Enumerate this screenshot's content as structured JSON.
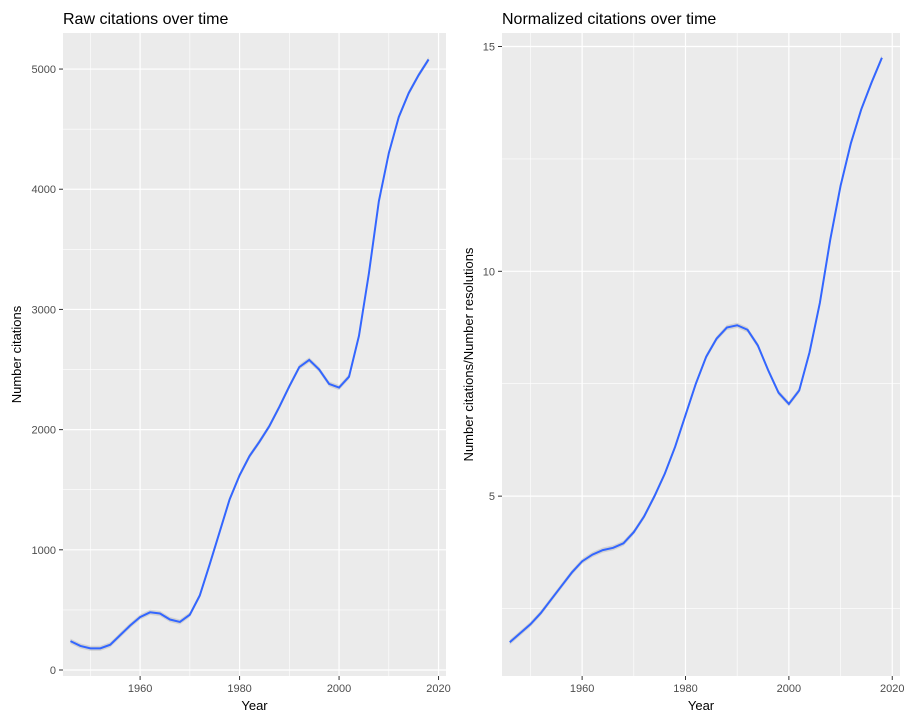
{
  "chart_data": [
    {
      "type": "line",
      "title": "Raw citations over time",
      "xlabel": "Year",
      "ylabel": "Number citations",
      "xlim": [
        1944.5,
        2021.5
      ],
      "ylim": [
        -50,
        5300
      ],
      "x_ticks": [
        1960,
        1980,
        2000,
        2020
      ],
      "x_tick_labels": [
        "1960",
        "1980",
        "2000",
        "2020"
      ],
      "y_ticks": [
        0,
        1000,
        2000,
        3000,
        4000,
        5000
      ],
      "y_tick_labels": [
        "0",
        "1000",
        "2000",
        "3000",
        "4000",
        "5000"
      ],
      "grid": true,
      "panel_background": "#ebebeb",
      "line_color": "#3366ff",
      "series": [
        {
          "x": [
            1946,
            1948,
            1950,
            1952,
            1954,
            1956,
            1958,
            1960,
            1962,
            1964,
            1966,
            1968,
            1970,
            1972,
            1974,
            1976,
            1978,
            1980,
            1982,
            1984,
            1986,
            1988,
            1990,
            1992,
            1994,
            1996,
            1998,
            2000,
            2002,
            2004,
            2006,
            2008,
            2010,
            2012,
            2014,
            2016,
            2018
          ],
          "y": [
            240,
            200,
            180,
            180,
            210,
            290,
            370,
            440,
            480,
            470,
            420,
            400,
            460,
            620,
            880,
            1150,
            1420,
            1620,
            1780,
            1900,
            2030,
            2190,
            2360,
            2520,
            2580,
            2500,
            2380,
            2350,
            2440,
            2780,
            3300,
            3900,
            4300,
            4600,
            4800,
            4950,
            5080
          ]
        }
      ]
    },
    {
      "type": "line",
      "title": "Normalized citations over time",
      "xlabel": "Year",
      "ylabel": "Number citations/Number resolutions",
      "xlim": [
        1944.5,
        2021.5
      ],
      "ylim": [
        1.0,
        15.3
      ],
      "x_ticks": [
        1960,
        1980,
        2000,
        2020
      ],
      "x_tick_labels": [
        "1960",
        "1980",
        "2000",
        "2020"
      ],
      "y_ticks": [
        5,
        10,
        15
      ],
      "y_tick_labels": [
        "5",
        "10",
        "15"
      ],
      "grid": true,
      "panel_background": "#ebebeb",
      "line_color": "#3366ff",
      "series": [
        {
          "x": [
            1946,
            1948,
            1950,
            1952,
            1954,
            1956,
            1958,
            1960,
            1962,
            1964,
            1966,
            1968,
            1970,
            1972,
            1974,
            1976,
            1978,
            1980,
            1982,
            1984,
            1986,
            1988,
            1990,
            1992,
            1994,
            1996,
            1998,
            2000,
            2002,
            2004,
            2006,
            2008,
            2010,
            2012,
            2014,
            2016,
            2018
          ],
          "y": [
            1.75,
            1.95,
            2.15,
            2.4,
            2.7,
            3.0,
            3.3,
            3.55,
            3.7,
            3.8,
            3.85,
            3.95,
            4.2,
            4.55,
            5.0,
            5.5,
            6.1,
            6.8,
            7.5,
            8.1,
            8.5,
            8.75,
            8.8,
            8.7,
            8.35,
            7.8,
            7.3,
            7.05,
            7.35,
            8.2,
            9.3,
            10.7,
            11.9,
            12.85,
            13.6,
            14.2,
            14.75
          ]
        }
      ]
    }
  ]
}
